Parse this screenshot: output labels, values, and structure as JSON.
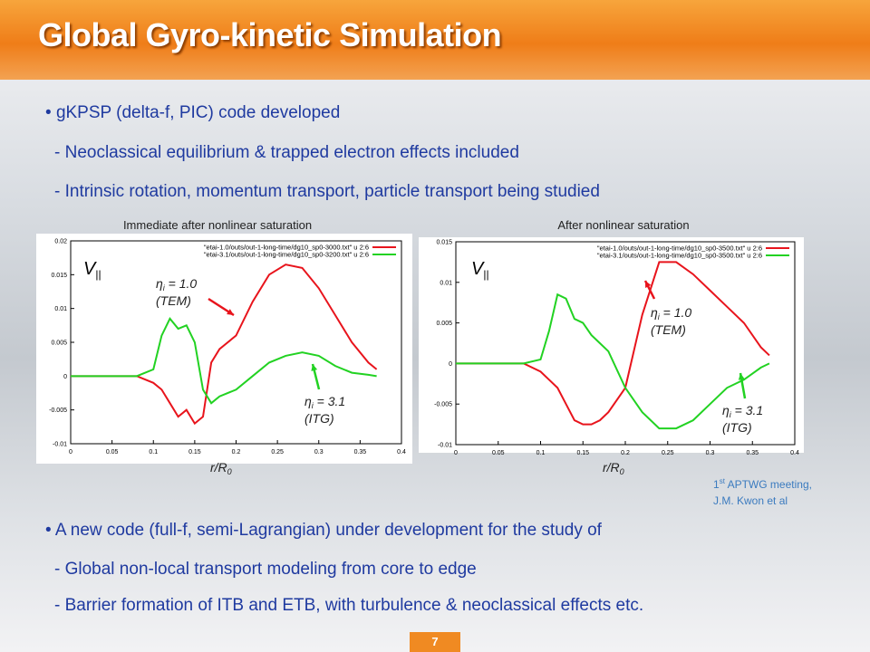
{
  "header": {
    "title": "Global Gyro-kinetic Simulation"
  },
  "bullets": [
    {
      "text": "gKPSP (delta-f, PIC) code developed",
      "subitems": [
        "- Neoclassical equilibrium & trapped electron effects included",
        "- Intrinsic rotation, momentum transport, particle transport being studied"
      ]
    },
    {
      "text": "A new code (full-f, semi-Lagrangian)  under development for the study of",
      "subitems": [
        "- Global non-local transport modeling from core to edge",
        "- Barrier formation of ITB and ETB, with turbulence & neoclassical effects etc."
      ]
    }
  ],
  "note": {
    "pre": "1",
    "sup": "st",
    "post": " APTWG meeting,",
    "line2": "J.M. Kwon et al"
  },
  "page_number": "7",
  "chart_data": [
    {
      "type": "line",
      "title": "Immediate after nonlinear saturation",
      "x_label": {
        "main": "r/R",
        "sub": "0"
      },
      "y_label": {
        "main": "V",
        "sub": "||"
      },
      "x": [
        0,
        0.05,
        0.08,
        0.1,
        0.11,
        0.12,
        0.13,
        0.14,
        0.15,
        0.16,
        0.17,
        0.18,
        0.2,
        0.22,
        0.24,
        0.26,
        0.28,
        0.3,
        0.32,
        0.34,
        0.36,
        0.37
      ],
      "series": [
        {
          "name": "\"etai-1.0/outs/out-1-long-time/dg10_sp0-3000.txt\" u 2:6",
          "color": "#e8141c",
          "values": [
            0,
            0,
            0,
            -0.001,
            -0.002,
            -0.004,
            -0.006,
            -0.005,
            -0.007,
            -0.006,
            0.002,
            0.004,
            0.006,
            0.011,
            0.015,
            0.0165,
            0.016,
            0.013,
            0.009,
            0.005,
            0.002,
            0.001
          ]
        },
        {
          "name": "\"etai-3.1/outs/out-1-long-time/dg10_sp0-3200.txt\" u 2:6",
          "color": "#22d222",
          "values": [
            0,
            0,
            0,
            0.001,
            0.006,
            0.0085,
            0.007,
            0.0075,
            0.005,
            -0.002,
            -0.004,
            -0.003,
            -0.002,
            0,
            0.002,
            0.003,
            0.0035,
            0.003,
            0.0015,
            0.0005,
            0.0002,
            0
          ]
        }
      ],
      "annotations": [
        {
          "eta": "η",
          "sub": "i",
          "value": " = 1.0",
          "mode": "(TEM)"
        },
        {
          "eta": "η",
          "sub": "i",
          "value": " = 3.1",
          "mode": "(ITG)"
        }
      ],
      "xlim": [
        0,
        0.4
      ],
      "xticks": [
        0,
        0.05,
        0.1,
        0.15,
        0.2,
        0.25,
        0.3,
        0.35,
        0.4
      ],
      "ylim": [
        -0.01,
        0.02
      ],
      "yticks": [
        -0.01,
        -0.005,
        0,
        0.005,
        0.01,
        0.015,
        0.02
      ]
    },
    {
      "type": "line",
      "title": "After nonlinear saturation",
      "x_label": {
        "main": "r/R",
        "sub": "0"
      },
      "y_label": {
        "main": "V",
        "sub": "||"
      },
      "x": [
        0,
        0.05,
        0.08,
        0.1,
        0.11,
        0.12,
        0.13,
        0.14,
        0.15,
        0.16,
        0.17,
        0.18,
        0.2,
        0.22,
        0.24,
        0.26,
        0.28,
        0.3,
        0.32,
        0.34,
        0.36,
        0.37
      ],
      "series": [
        {
          "name": "\"etai-1.0/outs/out-1-long-time/dg10_sp0-3500.txt\" u 2:6",
          "color": "#e8141c",
          "values": [
            0,
            0,
            0,
            -0.001,
            -0.002,
            -0.003,
            -0.005,
            -0.007,
            -0.0075,
            -0.0075,
            -0.007,
            -0.006,
            -0.003,
            0.006,
            0.0125,
            0.0125,
            0.011,
            0.009,
            0.007,
            0.005,
            0.002,
            0.001
          ]
        },
        {
          "name": "\"etai-3.1/outs/out-1-long-time/dg10_sp0-3500.txt\" u 2:6",
          "color": "#22d222",
          "values": [
            0,
            0,
            0,
            0.0005,
            0.004,
            0.0085,
            0.008,
            0.0055,
            0.005,
            0.0035,
            0.0025,
            0.0015,
            -0.003,
            -0.006,
            -0.008,
            -0.008,
            -0.007,
            -0.005,
            -0.003,
            -0.002,
            -0.0005,
            0
          ]
        }
      ],
      "annotations": [
        {
          "eta": "η",
          "sub": "i",
          "value": " = 1.0",
          "mode": "(TEM)"
        },
        {
          "eta": "η",
          "sub": "i",
          "value": " = 3.1",
          "mode": "(ITG)"
        }
      ],
      "xlim": [
        0,
        0.4
      ],
      "xticks": [
        0,
        0.05,
        0.1,
        0.15,
        0.2,
        0.25,
        0.3,
        0.35,
        0.4
      ],
      "ylim": [
        -0.01,
        0.015
      ],
      "yticks": [
        -0.01,
        -0.005,
        0,
        0.005,
        0.01,
        0.015
      ]
    }
  ]
}
